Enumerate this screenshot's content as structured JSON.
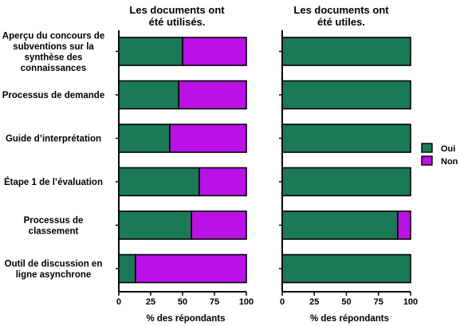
{
  "chart_data": [
    {
      "type": "bar",
      "orientation": "horizontal",
      "stacked": true,
      "title": "Les documents ont été utilisés.",
      "title_lines": [
        "Les documents ont",
        "été utilisés."
      ],
      "xlabel": "% des répondants",
      "ylabel": "",
      "xlim": [
        0,
        100
      ],
      "xticks": [
        "0",
        "25",
        "50",
        "75",
        "100"
      ],
      "grid": false,
      "categories": [
        "Aperçu du concours de subventions sur la synthèse des connaissances",
        "Processus de demande",
        "Guide d’interprétation",
        "Étape 1 de l’évaluation",
        "Processus de classement",
        "Outil de discussion en ligne asynchrone"
      ],
      "category_lines": [
        [
          "Aperçu du concours de",
          "subventions sur la",
          "synthèse des",
          "connaissances"
        ],
        [
          "Processus de demande"
        ],
        [
          "Guide d’interprétation"
        ],
        [
          "Étape 1 de l’évaluation"
        ],
        [
          "Processus de",
          "classement"
        ],
        [
          "Outil de discussion en",
          "ligne asynchrone"
        ]
      ],
      "series": [
        {
          "name": "Oui",
          "color": "#1a7a55",
          "values": [
            50,
            47,
            40,
            63,
            57,
            13
          ]
        },
        {
          "name": "Non",
          "color": "#bb10e6",
          "values": [
            50,
            53,
            60,
            37,
            43,
            87
          ]
        }
      ]
    },
    {
      "type": "bar",
      "orientation": "horizontal",
      "stacked": true,
      "title": "Les documents ont été utiles.",
      "title_lines": [
        "Les documents ont",
        "été utiles."
      ],
      "xlabel": "% des répondants",
      "ylabel": "",
      "xlim": [
        0,
        100
      ],
      "xticks": [
        "0",
        "25",
        "50",
        "75",
        "100"
      ],
      "grid": false,
      "categories": [
        "Aperçu du concours de subventions sur la synthèse des connaissances",
        "Processus de demande",
        "Guide d’interprétation",
        "Étape 1 de l’évaluation",
        "Processus de classement",
        "Outil de discussion en ligne asynchrone"
      ],
      "series": [
        {
          "name": "Oui",
          "color": "#1a7a55",
          "values": [
            100,
            100,
            100,
            100,
            90,
            100
          ]
        },
        {
          "name": "Non",
          "color": "#bb10e6",
          "values": [
            0,
            0,
            0,
            0,
            10,
            0
          ]
        }
      ]
    }
  ],
  "legend": {
    "position": "right",
    "items": [
      {
        "label": "Oui",
        "color": "#1a7a55"
      },
      {
        "label": "Non",
        "color": "#bb10e6"
      }
    ]
  }
}
